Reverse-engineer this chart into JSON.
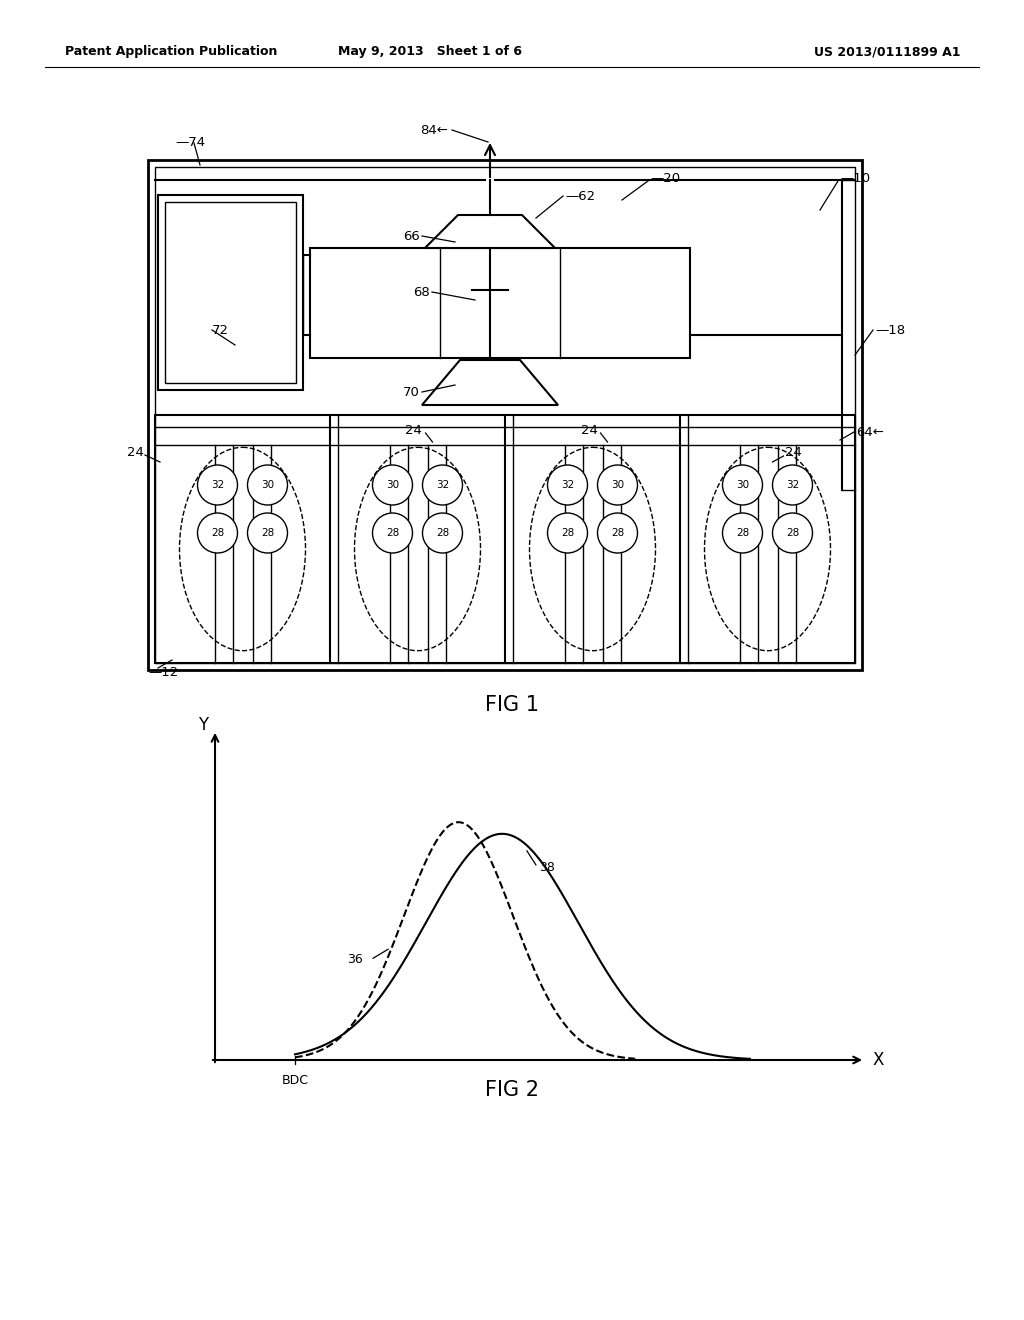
{
  "bg_color": "#ffffff",
  "line_color": "#000000",
  "header_left": "Patent Application Publication",
  "header_mid": "May 9, 2013   Sheet 1 of 6",
  "header_right": "US 2013/0111899 A1",
  "fig1_label": "FIG 1",
  "fig2_label": "FIG 2"
}
